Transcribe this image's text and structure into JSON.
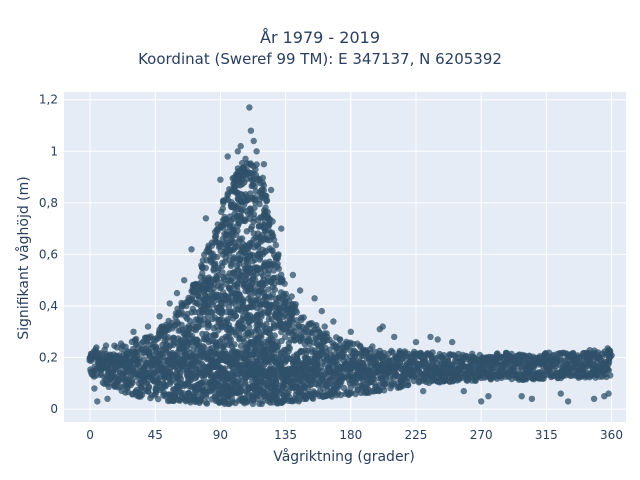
{
  "chart_data": {
    "type": "scatter",
    "title_line1": "År 1979 - 2019",
    "title_line2": "Koordinat (Sweref 99 TM): E 347137, N 6205392",
    "xlabel": "Vågriktning (grader)",
    "ylabel": "Signifikant våghöjd (m)",
    "xlim": [
      -18,
      370
    ],
    "ylim": [
      -0.05,
      1.23
    ],
    "x_ticks": [
      0,
      45,
      90,
      135,
      180,
      225,
      270,
      315,
      360
    ],
    "x_tick_labels": [
      "0",
      "45",
      "90",
      "135",
      "180",
      "225",
      "270",
      "315",
      "360"
    ],
    "y_ticks": [
      0,
      0.2,
      0.4,
      0.6,
      0.8,
      1.0,
      1.2
    ],
    "y_tick_labels": [
      "0",
      "0,2",
      "0,4",
      "0,6",
      "0,8",
      "1",
      "1,2"
    ],
    "grid": true,
    "background": "#e5ecf6",
    "marker_color": "#2f5068",
    "envelope": {
      "x": [
        0,
        15,
        30,
        45,
        55,
        65,
        75,
        85,
        90,
        95,
        100,
        105,
        110,
        115,
        120,
        125,
        130,
        135,
        145,
        155,
        170,
        190,
        210,
        230,
        260,
        290,
        320,
        345,
        360
      ],
      "upper": [
        0.24,
        0.25,
        0.27,
        0.3,
        0.36,
        0.43,
        0.54,
        0.68,
        0.78,
        0.86,
        0.92,
        0.96,
        0.98,
        0.96,
        0.88,
        0.76,
        0.6,
        0.47,
        0.38,
        0.33,
        0.28,
        0.25,
        0.23,
        0.22,
        0.21,
        0.21,
        0.22,
        0.23,
        0.24
      ],
      "lower": [
        0.13,
        0.08,
        0.05,
        0.04,
        0.03,
        0.03,
        0.02,
        0.02,
        0.02,
        0.02,
        0.02,
        0.02,
        0.02,
        0.02,
        0.02,
        0.02,
        0.02,
        0.03,
        0.03,
        0.04,
        0.05,
        0.06,
        0.08,
        0.1,
        0.11,
        0.11,
        0.12,
        0.12,
        0.13
      ]
    },
    "outliers": [
      {
        "x": 110,
        "y": 1.17
      },
      {
        "x": 111,
        "y": 1.08
      },
      {
        "x": 113,
        "y": 1.04
      },
      {
        "x": 104,
        "y": 1.02
      },
      {
        "x": 102,
        "y": 1.0
      },
      {
        "x": 115,
        "y": 1.0
      },
      {
        "x": 95,
        "y": 0.98
      },
      {
        "x": 120,
        "y": 0.95
      },
      {
        "x": 90,
        "y": 0.89
      },
      {
        "x": 125,
        "y": 0.85
      },
      {
        "x": 80,
        "y": 0.74
      },
      {
        "x": 132,
        "y": 0.7
      },
      {
        "x": 70,
        "y": 0.62
      },
      {
        "x": 140,
        "y": 0.52
      },
      {
        "x": 145,
        "y": 0.46
      },
      {
        "x": 155,
        "y": 0.43
      },
      {
        "x": 160,
        "y": 0.38
      },
      {
        "x": 168,
        "y": 0.34
      },
      {
        "x": 162,
        "y": 0.32
      },
      {
        "x": 180,
        "y": 0.3
      },
      {
        "x": 202,
        "y": 0.32
      },
      {
        "x": 200,
        "y": 0.31
      },
      {
        "x": 210,
        "y": 0.28
      },
      {
        "x": 225,
        "y": 0.26
      },
      {
        "x": 235,
        "y": 0.28
      },
      {
        "x": 240,
        "y": 0.27
      },
      {
        "x": 250,
        "y": 0.26
      },
      {
        "x": 55,
        "y": 0.41
      },
      {
        "x": 60,
        "y": 0.45
      },
      {
        "x": 65,
        "y": 0.5
      },
      {
        "x": 48,
        "y": 0.36
      },
      {
        "x": 40,
        "y": 0.32
      },
      {
        "x": 30,
        "y": 0.3
      },
      {
        "x": 5,
        "y": 0.03
      },
      {
        "x": 12,
        "y": 0.04
      },
      {
        "x": 3,
        "y": 0.08
      },
      {
        "x": 270,
        "y": 0.03
      },
      {
        "x": 275,
        "y": 0.05
      },
      {
        "x": 298,
        "y": 0.05
      },
      {
        "x": 305,
        "y": 0.04
      },
      {
        "x": 325,
        "y": 0.06
      },
      {
        "x": 330,
        "y": 0.03
      },
      {
        "x": 355,
        "y": 0.05
      },
      {
        "x": 358,
        "y": 0.06
      },
      {
        "x": 348,
        "y": 0.04
      },
      {
        "x": 258,
        "y": 0.07
      },
      {
        "x": 230,
        "y": 0.07
      },
      {
        "x": 215,
        "y": 0.09
      }
    ]
  }
}
